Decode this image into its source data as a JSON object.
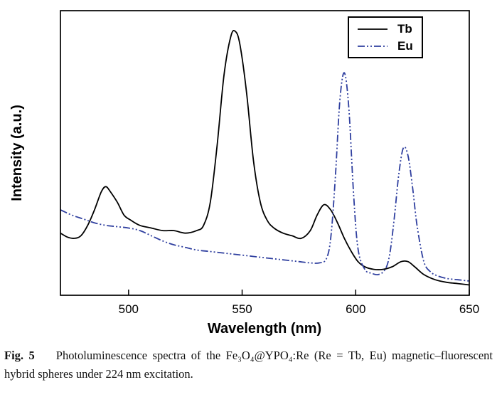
{
  "chart_data": {
    "type": "line",
    "title": "",
    "xlabel": "Wavelength (nm)",
    "ylabel": "Intensity (a.u.)",
    "xlim": [
      470,
      650
    ],
    "ylim": [
      0,
      1.1
    ],
    "xticks": [
      500,
      550,
      600,
      650
    ],
    "grid": false,
    "legend_position": "top-right",
    "series": [
      {
        "name": "Tb",
        "color": "#000000",
        "dash": "",
        "x": [
          470,
          473,
          476,
          479,
          482,
          485,
          488,
          490,
          492,
          495,
          498,
          501,
          505,
          510,
          515,
          520,
          525,
          530,
          533,
          536,
          539,
          542,
          545,
          547,
          549,
          552,
          555,
          558,
          561,
          564,
          568,
          572,
          576,
          580,
          583,
          586,
          589,
          592,
          595,
          598,
          601,
          604,
          608,
          612,
          616,
          620,
          623,
          626,
          630,
          635,
          640,
          645,
          650
        ],
        "y": [
          0.24,
          0.225,
          0.22,
          0.23,
          0.27,
          0.33,
          0.4,
          0.42,
          0.4,
          0.36,
          0.31,
          0.29,
          0.27,
          0.26,
          0.25,
          0.25,
          0.24,
          0.25,
          0.27,
          0.36,
          0.58,
          0.85,
          1.0,
          1.02,
          0.97,
          0.78,
          0.52,
          0.36,
          0.29,
          0.26,
          0.24,
          0.23,
          0.22,
          0.25,
          0.31,
          0.35,
          0.33,
          0.28,
          0.22,
          0.17,
          0.13,
          0.11,
          0.1,
          0.1,
          0.11,
          0.13,
          0.13,
          0.11,
          0.08,
          0.06,
          0.05,
          0.045,
          0.04
        ]
      },
      {
        "name": "Eu",
        "color": "#2f3f9f",
        "dash": "10 3 2 3 2 3",
        "x": [
          470,
          475,
          480,
          485,
          490,
          495,
          500,
          505,
          510,
          515,
          520,
          525,
          530,
          535,
          540,
          545,
          550,
          555,
          560,
          565,
          570,
          575,
          580,
          584,
          587,
          589,
          591,
          593,
          595,
          597,
          599,
          601,
          604,
          607,
          610,
          613,
          615,
          617,
          619,
          621,
          623,
          625,
          627,
          630,
          633,
          636,
          640,
          645,
          650
        ],
        "y": [
          0.33,
          0.31,
          0.295,
          0.28,
          0.27,
          0.265,
          0.26,
          0.25,
          0.23,
          0.21,
          0.195,
          0.185,
          0.175,
          0.17,
          0.165,
          0.16,
          0.155,
          0.15,
          0.145,
          0.14,
          0.135,
          0.13,
          0.125,
          0.125,
          0.14,
          0.22,
          0.45,
          0.75,
          0.86,
          0.72,
          0.4,
          0.18,
          0.1,
          0.085,
          0.08,
          0.1,
          0.16,
          0.3,
          0.47,
          0.57,
          0.54,
          0.42,
          0.27,
          0.13,
          0.09,
          0.075,
          0.065,
          0.06,
          0.055
        ]
      }
    ]
  },
  "caption": {
    "label": "Fig. 5",
    "text": "Photoluminescence spectra of the Fe₃O₄@YPO₄:Re (Re = Tb, Eu) magnetic–fluorescent hybrid spheres under 224 nm excitation."
  }
}
